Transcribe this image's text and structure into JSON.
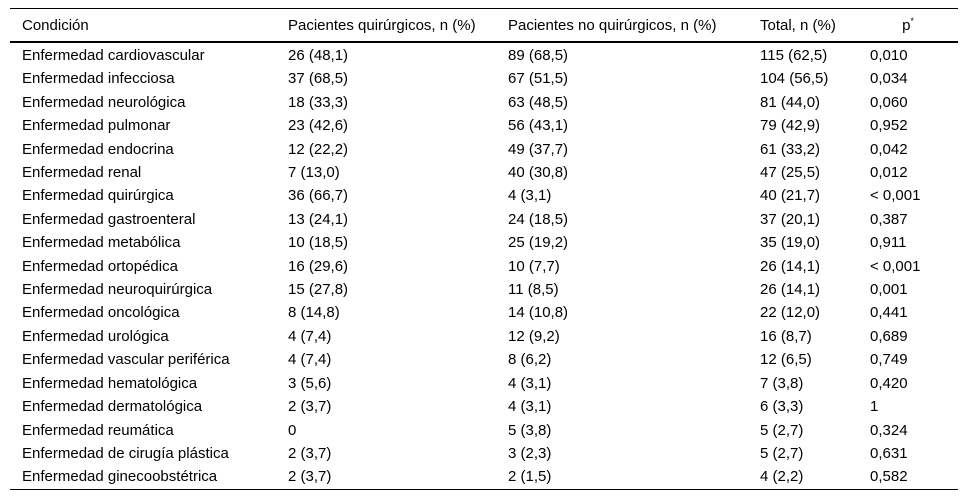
{
  "table": {
    "columns": [
      "Condición",
      "Pacientes quirúrgicos, n (%)",
      "Pacientes no quirúrgicos, n (%)",
      "Total, n (%)",
      "p"
    ],
    "p_column_superscript": "*",
    "rows": [
      [
        "Enfermedad cardiovascular",
        "26 (48,1)",
        "89 (68,5)",
        "115 (62,5)",
        "0,010"
      ],
      [
        "Enfermedad infecciosa",
        "37 (68,5)",
        "67 (51,5)",
        "104 (56,5)",
        "0,034"
      ],
      [
        "Enfermedad neurológica",
        "18 (33,3)",
        "63 (48,5)",
        "81 (44,0)",
        "0,060"
      ],
      [
        "Enfermedad pulmonar",
        "23 (42,6)",
        "56 (43,1)",
        "79 (42,9)",
        "0,952"
      ],
      [
        "Enfermedad endocrina",
        "12 (22,2)",
        "49 (37,7)",
        "61 (33,2)",
        "0,042"
      ],
      [
        "Enfermedad renal",
        "7 (13,0)",
        "40 (30,8)",
        "47 (25,5)",
        "0,012"
      ],
      [
        "Enfermedad quirúrgica",
        "36 (66,7)",
        "4 (3,1)",
        "40 (21,7)",
        "< 0,001"
      ],
      [
        "Enfermedad gastroenteral",
        "13 (24,1)",
        "24 (18,5)",
        "37 (20,1)",
        "0,387"
      ],
      [
        "Enfermedad metabólica",
        "10 (18,5)",
        "25 (19,2)",
        "35 (19,0)",
        "0,911"
      ],
      [
        "Enfermedad ortopédica",
        "16 (29,6)",
        "10 (7,7)",
        "26 (14,1)",
        "< 0,001"
      ],
      [
        "Enfermedad neuroquirúrgica",
        "15 (27,8)",
        "11 (8,5)",
        "26 (14,1)",
        "0,001"
      ],
      [
        "Enfermedad oncológica",
        "8 (14,8)",
        "14 (10,8)",
        "22 (12,0)",
        "0,441"
      ],
      [
        "Enfermedad urológica",
        "4 (7,4)",
        "12 (9,2)",
        "16 (8,7)",
        "0,689"
      ],
      [
        "Enfermedad vascular periférica",
        "4 (7,4)",
        "8 (6,2)",
        "12 (6,5)",
        "0,749"
      ],
      [
        "Enfermedad hematológica",
        "3 (5,6)",
        "4 (3,1)",
        "7 (3,8)",
        "0,420"
      ],
      [
        "Enfermedad dermatológica",
        "2 (3,7)",
        "4 (3,1)",
        "6 (3,3)",
        "1"
      ],
      [
        "Enfermedad reumática",
        "0",
        "5 (3,8)",
        "5 (2,7)",
        "0,324"
      ],
      [
        "Enfermedad de cirugía plástica",
        "2 (3,7)",
        "3 (2,3)",
        "5 (2,7)",
        "0,631"
      ],
      [
        "Enfermedad ginecoobstétrica",
        "2 (3,7)",
        "2 (1,5)",
        "4 (2,2)",
        "0,582"
      ]
    ]
  },
  "colors": {
    "text": "#000000",
    "border": "#000000",
    "background": "#ffffff"
  }
}
